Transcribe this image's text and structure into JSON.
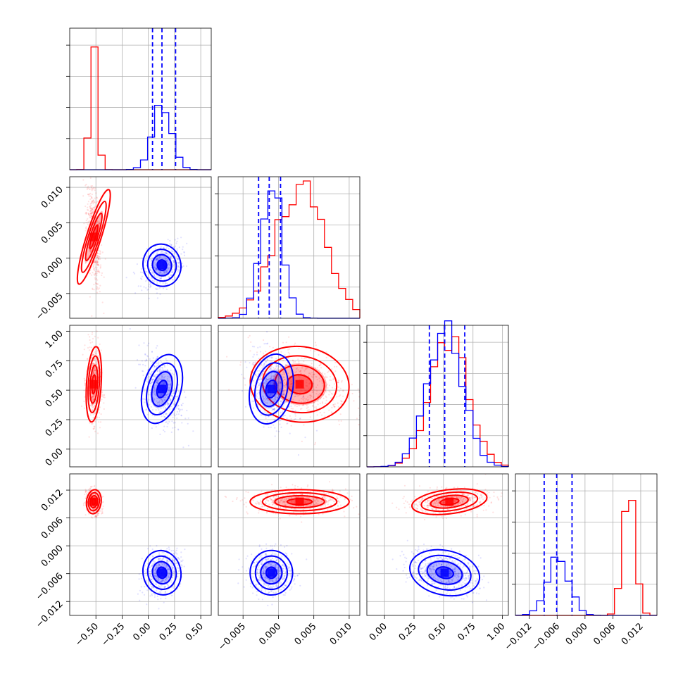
{
  "colors": {
    "red": "#ff0000",
    "blue": "#0000ff",
    "grid": "#b0b0b0"
  },
  "chart_data": {
    "type": "corner",
    "parameters": [
      {
        "range": [
          -0.75,
          0.6
        ],
        "ticks": [
          -0.5,
          -0.25,
          0.0,
          0.25,
          0.5
        ],
        "tick_labels": [
          "−0.50",
          "−0.25",
          "0.00",
          "0.25",
          "0.50"
        ]
      },
      {
        "range": [
          -0.0085,
          0.0115
        ],
        "ticks": [
          -0.005,
          0.0,
          0.005,
          0.01
        ],
        "tick_labels": [
          "−0.005",
          "0.000",
          "0.005",
          "0.010"
        ]
      },
      {
        "range": [
          -0.15,
          1.05
        ],
        "ticks": [
          0.0,
          0.25,
          0.5,
          0.75,
          1.0
        ],
        "tick_labels": [
          "0.00",
          "0.25",
          "0.50",
          "0.75",
          "1.00"
        ]
      },
      {
        "range": [
          -0.015,
          0.0155
        ],
        "ticks": [
          -0.012,
          -0.006,
          0.0,
          0.006,
          0.012
        ],
        "tick_labels": [
          "−0.012",
          "−0.006",
          "0.000",
          "0.006",
          "0.012"
        ]
      }
    ],
    "series": [
      {
        "color": "red",
        "mean": [
          -0.52,
          0.003,
          0.55,
          0.0095
        ],
        "std": [
          0.035,
          0.0035,
          0.16,
          0.0013
        ],
        "histogram_peaks": [
          1.0,
          0.95,
          0.93,
          1.0
        ]
      },
      {
        "color": "blue",
        "mean": [
          0.13,
          -0.001,
          0.51,
          -0.0058
        ],
        "std": [
          0.09,
          0.0015,
          0.15,
          0.0024
        ],
        "histogram_peaks": [
          0.48,
          1.0,
          1.0,
          0.42
        ]
      }
    ],
    "quantile_lines": [
      {
        "param": 0,
        "color": "blue",
        "values": [
          0.04,
          0.13,
          0.26
        ]
      },
      {
        "param": 1,
        "color": "blue",
        "values": [
          -0.0028,
          -0.0013,
          0.0003
        ]
      },
      {
        "param": 2,
        "color": "blue",
        "values": [
          0.38,
          0.51,
          0.68
        ]
      },
      {
        "param": 3,
        "color": "blue",
        "values": [
          -0.0088,
          -0.0061,
          -0.0028
        ]
      }
    ],
    "grid": true,
    "title": "",
    "legend": "none"
  }
}
